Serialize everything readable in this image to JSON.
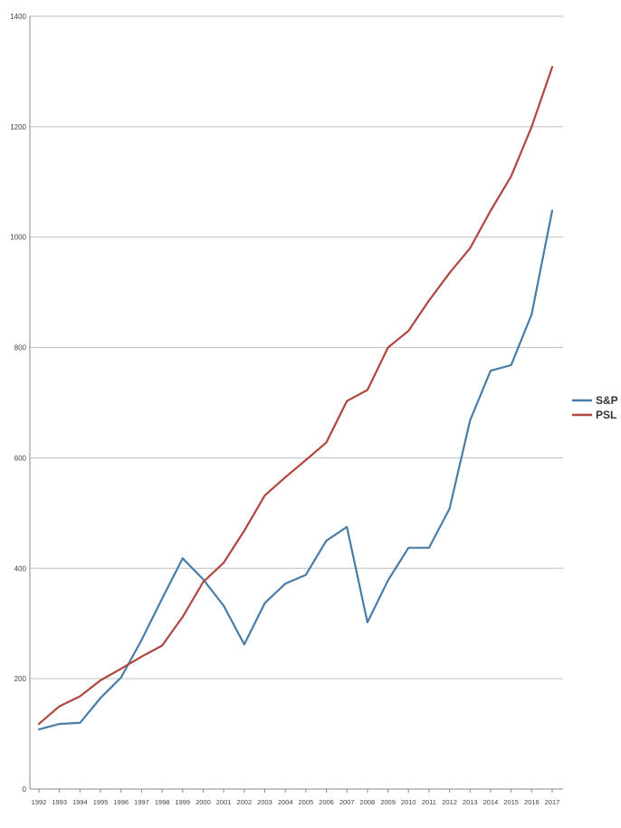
{
  "chart_data": {
    "type": "line",
    "title": "",
    "xlabel": "",
    "ylabel": "",
    "x": [
      "1992",
      "1993",
      "1994",
      "1995",
      "1996",
      "1997",
      "1998",
      "1999",
      "2000",
      "2001",
      "2002",
      "2003",
      "2004",
      "2005",
      "2006",
      "2007",
      "2008",
      "2009",
      "2010",
      "2011",
      "2012",
      "2013",
      "2014",
      "2015",
      "2016",
      "2017"
    ],
    "ylim": [
      0,
      1400
    ],
    "yticks": [
      "0",
      "200",
      "400",
      "600",
      "800",
      "1000",
      "1200",
      "1400"
    ],
    "grid": true,
    "legend_position": "right",
    "series": [
      {
        "name": "S&P",
        "color": "#4a7ca8",
        "values": [
          108,
          118,
          120,
          165,
          202,
          270,
          345,
          418,
          380,
          332,
          262,
          337,
          372,
          388,
          450,
          475,
          302,
          378,
          437,
          437,
          508,
          668,
          758,
          768,
          860,
          1048
        ]
      },
      {
        "name": "PSL",
        "color": "#b0463f",
        "values": [
          118,
          150,
          168,
          197,
          218,
          240,
          260,
          312,
          375,
          410,
          468,
          532,
          565,
          596,
          628,
          703,
          723,
          800,
          830,
          885,
          935,
          980,
          1048,
          1110,
          1200,
          1308
        ]
      }
    ]
  }
}
